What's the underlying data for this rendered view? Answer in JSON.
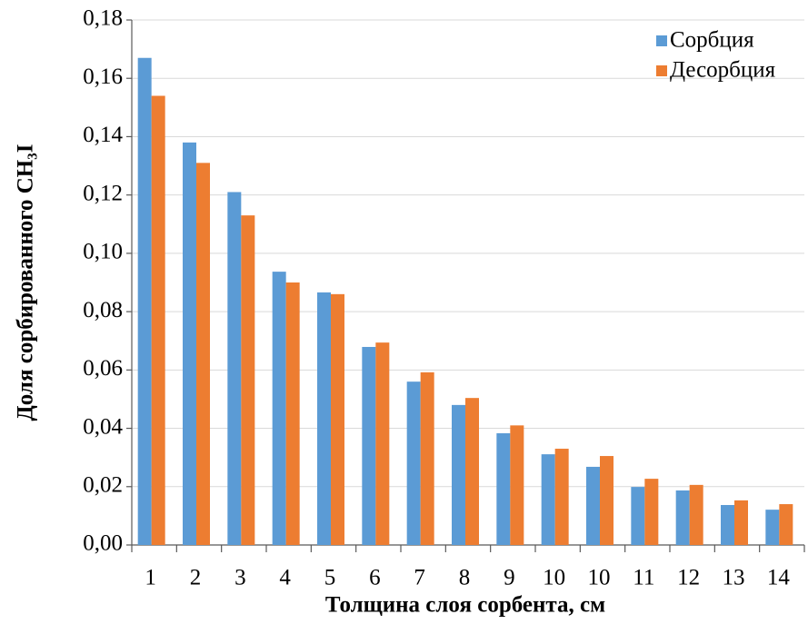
{
  "chart_data": {
    "type": "bar",
    "xlabel": "Толщина слоя сорбента, см",
    "ylabel": "Доля сорбированного CH₃I",
    "categories": [
      "1",
      "2",
      "3",
      "4",
      "5",
      "6",
      "7",
      "8",
      "9",
      "10",
      "10",
      "11",
      "12",
      "13",
      "14"
    ],
    "series": [
      {
        "name": "Сорбция",
        "color": "#5b9bd5",
        "values": [
          0.167,
          0.138,
          0.121,
          0.0937,
          0.0866,
          0.0679,
          0.056,
          0.048,
          0.0383,
          0.0311,
          0.0268,
          0.0199,
          0.0187,
          0.0137,
          0.0121
        ]
      },
      {
        "name": "Десорбция",
        "color": "#ed7d31",
        "values": [
          0.154,
          0.131,
          0.113,
          0.09,
          0.086,
          0.0694,
          0.0592,
          0.0504,
          0.041,
          0.033,
          0.0305,
          0.0227,
          0.0206,
          0.0153,
          0.014
        ]
      }
    ],
    "ylim": [
      0,
      0.18
    ],
    "yticks": [
      {
        "value": 0,
        "label": "0,00"
      },
      {
        "value": 0.02,
        "label": "0,02"
      },
      {
        "value": 0.04,
        "label": "0,04"
      },
      {
        "value": 0.06,
        "label": "0,06"
      },
      {
        "value": 0.08,
        "label": "0,08"
      },
      {
        "value": 0.1,
        "label": "0,10"
      },
      {
        "value": 0.12,
        "label": "0,12"
      },
      {
        "value": 0.14,
        "label": "0,14"
      },
      {
        "value": 0.16,
        "label": "0,16"
      },
      {
        "value": 0.18,
        "label": "0,18"
      }
    ],
    "grid": true,
    "legend": "upper-right"
  }
}
